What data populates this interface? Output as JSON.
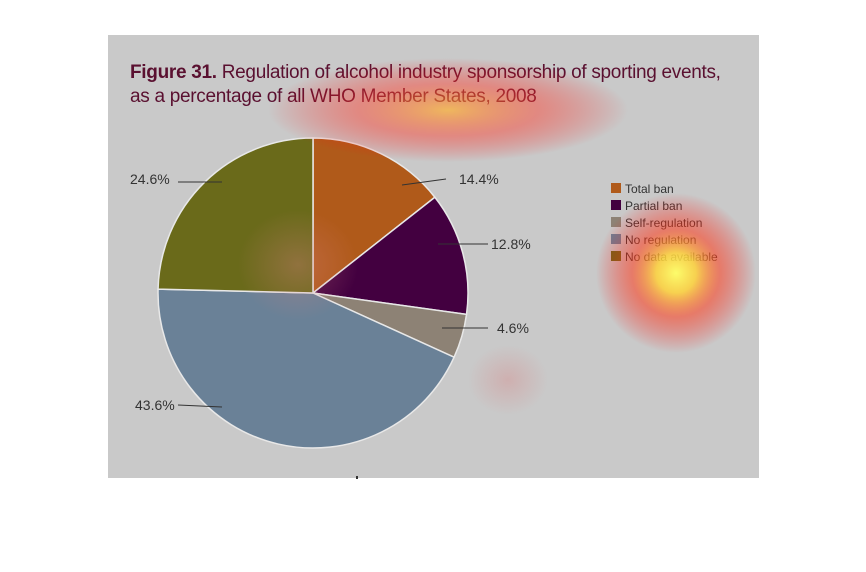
{
  "figure": {
    "title_bold": "Figure 31.",
    "title_line1": "Regulation of alcohol industry sponsorship of sporting events,",
    "title_line2": "as a percentage of all WHO Member States, 2008"
  },
  "chart_data": {
    "type": "pie",
    "title": "Figure 31. Regulation of alcohol industry sponsorship of sporting events, as a percentage of all WHO Member States, 2008",
    "legend_position": "right",
    "slices": [
      {
        "name": "Total ban",
        "value": 14.4,
        "label": "14.4%",
        "color": "#b05a1a"
      },
      {
        "name": "Partial ban",
        "value": 12.8,
        "label": "12.8%",
        "color": "#430040"
      },
      {
        "name": "Self-regulation",
        "value": 4.6,
        "label": "4.6%",
        "color": "#8d8275"
      },
      {
        "name": "No regulation",
        "value": 43.6,
        "label": "43.6%",
        "color": "#6a8197"
      },
      {
        "name": "No data available",
        "value": 24.6,
        "label": "24.6%",
        "color": "#6a6a1a"
      }
    ]
  },
  "colors": {
    "background": "#c9c9c9",
    "title": "#5a1030",
    "text": "#333333"
  }
}
